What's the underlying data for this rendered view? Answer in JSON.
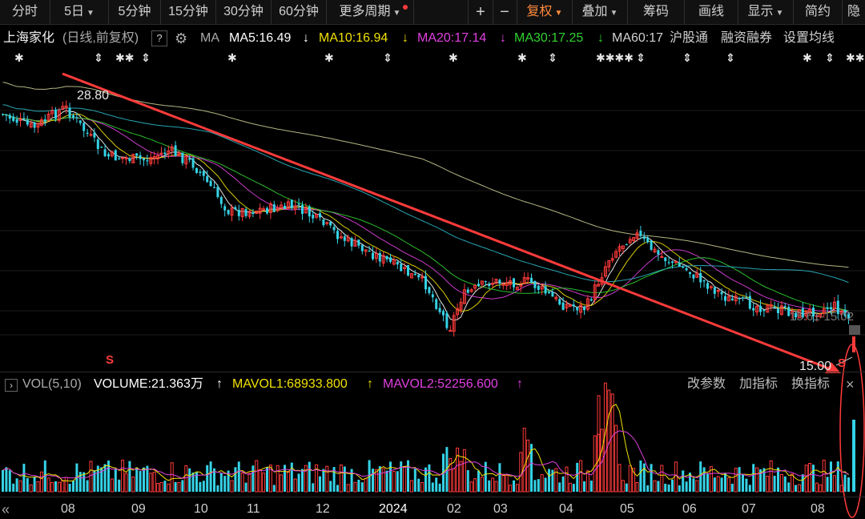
{
  "toolbar": {
    "items": [
      "分时",
      "5日",
      "5分钟",
      "15分钟",
      "30分钟",
      "60分钟",
      "更多周期"
    ],
    "plus": "+",
    "minus": "−",
    "fuquan": "复权",
    "diejia": "叠加",
    "chouma": "筹码",
    "huaxian": "画线",
    "xianshi": "显示",
    "jianyue": "简约",
    "yin": "隐"
  },
  "header": {
    "stock_name": "上海家化",
    "period": "(日线,前复权)",
    "help": "?",
    "ma_label": "MA",
    "ma5": "MA5:16.49",
    "ma10": "MA10:16.94",
    "ma20": "MA20:17.14",
    "ma30": "MA30:17.25",
    "ma60": "MA60:17",
    "hugutong": "沪股通",
    "rongzi": "融资融券",
    "shezhi": "设置均线",
    "arrow_down": "↓"
  },
  "colors": {
    "ma5": "#ffffff",
    "ma10": "#f0e000",
    "ma20": "#e040e0",
    "ma30": "#30d030",
    "ma60": "#d0d0d0",
    "up": "#ff3b3b",
    "down": "#35d2e6",
    "trend": "#ff3b3b"
  },
  "price_labels": {
    "high": "28.80",
    "low": "15.00",
    "faint_range": "15.61-15.02"
  },
  "signals": [
    "S",
    "S"
  ],
  "volume": {
    "label": "VOL(5,10)",
    "volume": "VOLUME:21.363万",
    "mavol1": "MAVOL1:68933.800",
    "mavol2": "MAVOL2:52256.600",
    "up_arrow": "↑",
    "gaicanshu": "改参数",
    "jiazhibiao": "加指标",
    "huanzhibiao": "换指标",
    "close": "×"
  },
  "xaxis": [
    "08",
    "09",
    "10",
    "11",
    "12",
    "2024",
    "02",
    "03",
    "04",
    "05",
    "06",
    "07",
    "08"
  ],
  "nav": "«",
  "chart_data": {
    "type": "candlestick",
    "title": "上海家化",
    "xlabel": "",
    "ylabel": "",
    "annotations": [
      "28.80",
      "15.00"
    ],
    "series": [
      {
        "name": "MA5",
        "values": [
          16.49
        ]
      },
      {
        "name": "MA10",
        "values": [
          16.94
        ]
      },
      {
        "name": "MA20",
        "values": [
          17.14
        ]
      },
      {
        "name": "MA30",
        "values": [
          17.25
        ]
      }
    ],
    "volume_series": [
      {
        "name": "VOLUME",
        "values": [
          213630
        ]
      },
      {
        "name": "MAVOL1",
        "values": [
          68933.8
        ]
      },
      {
        "name": "MAVOL2",
        "values": [
          52256.6
        ]
      }
    ]
  }
}
